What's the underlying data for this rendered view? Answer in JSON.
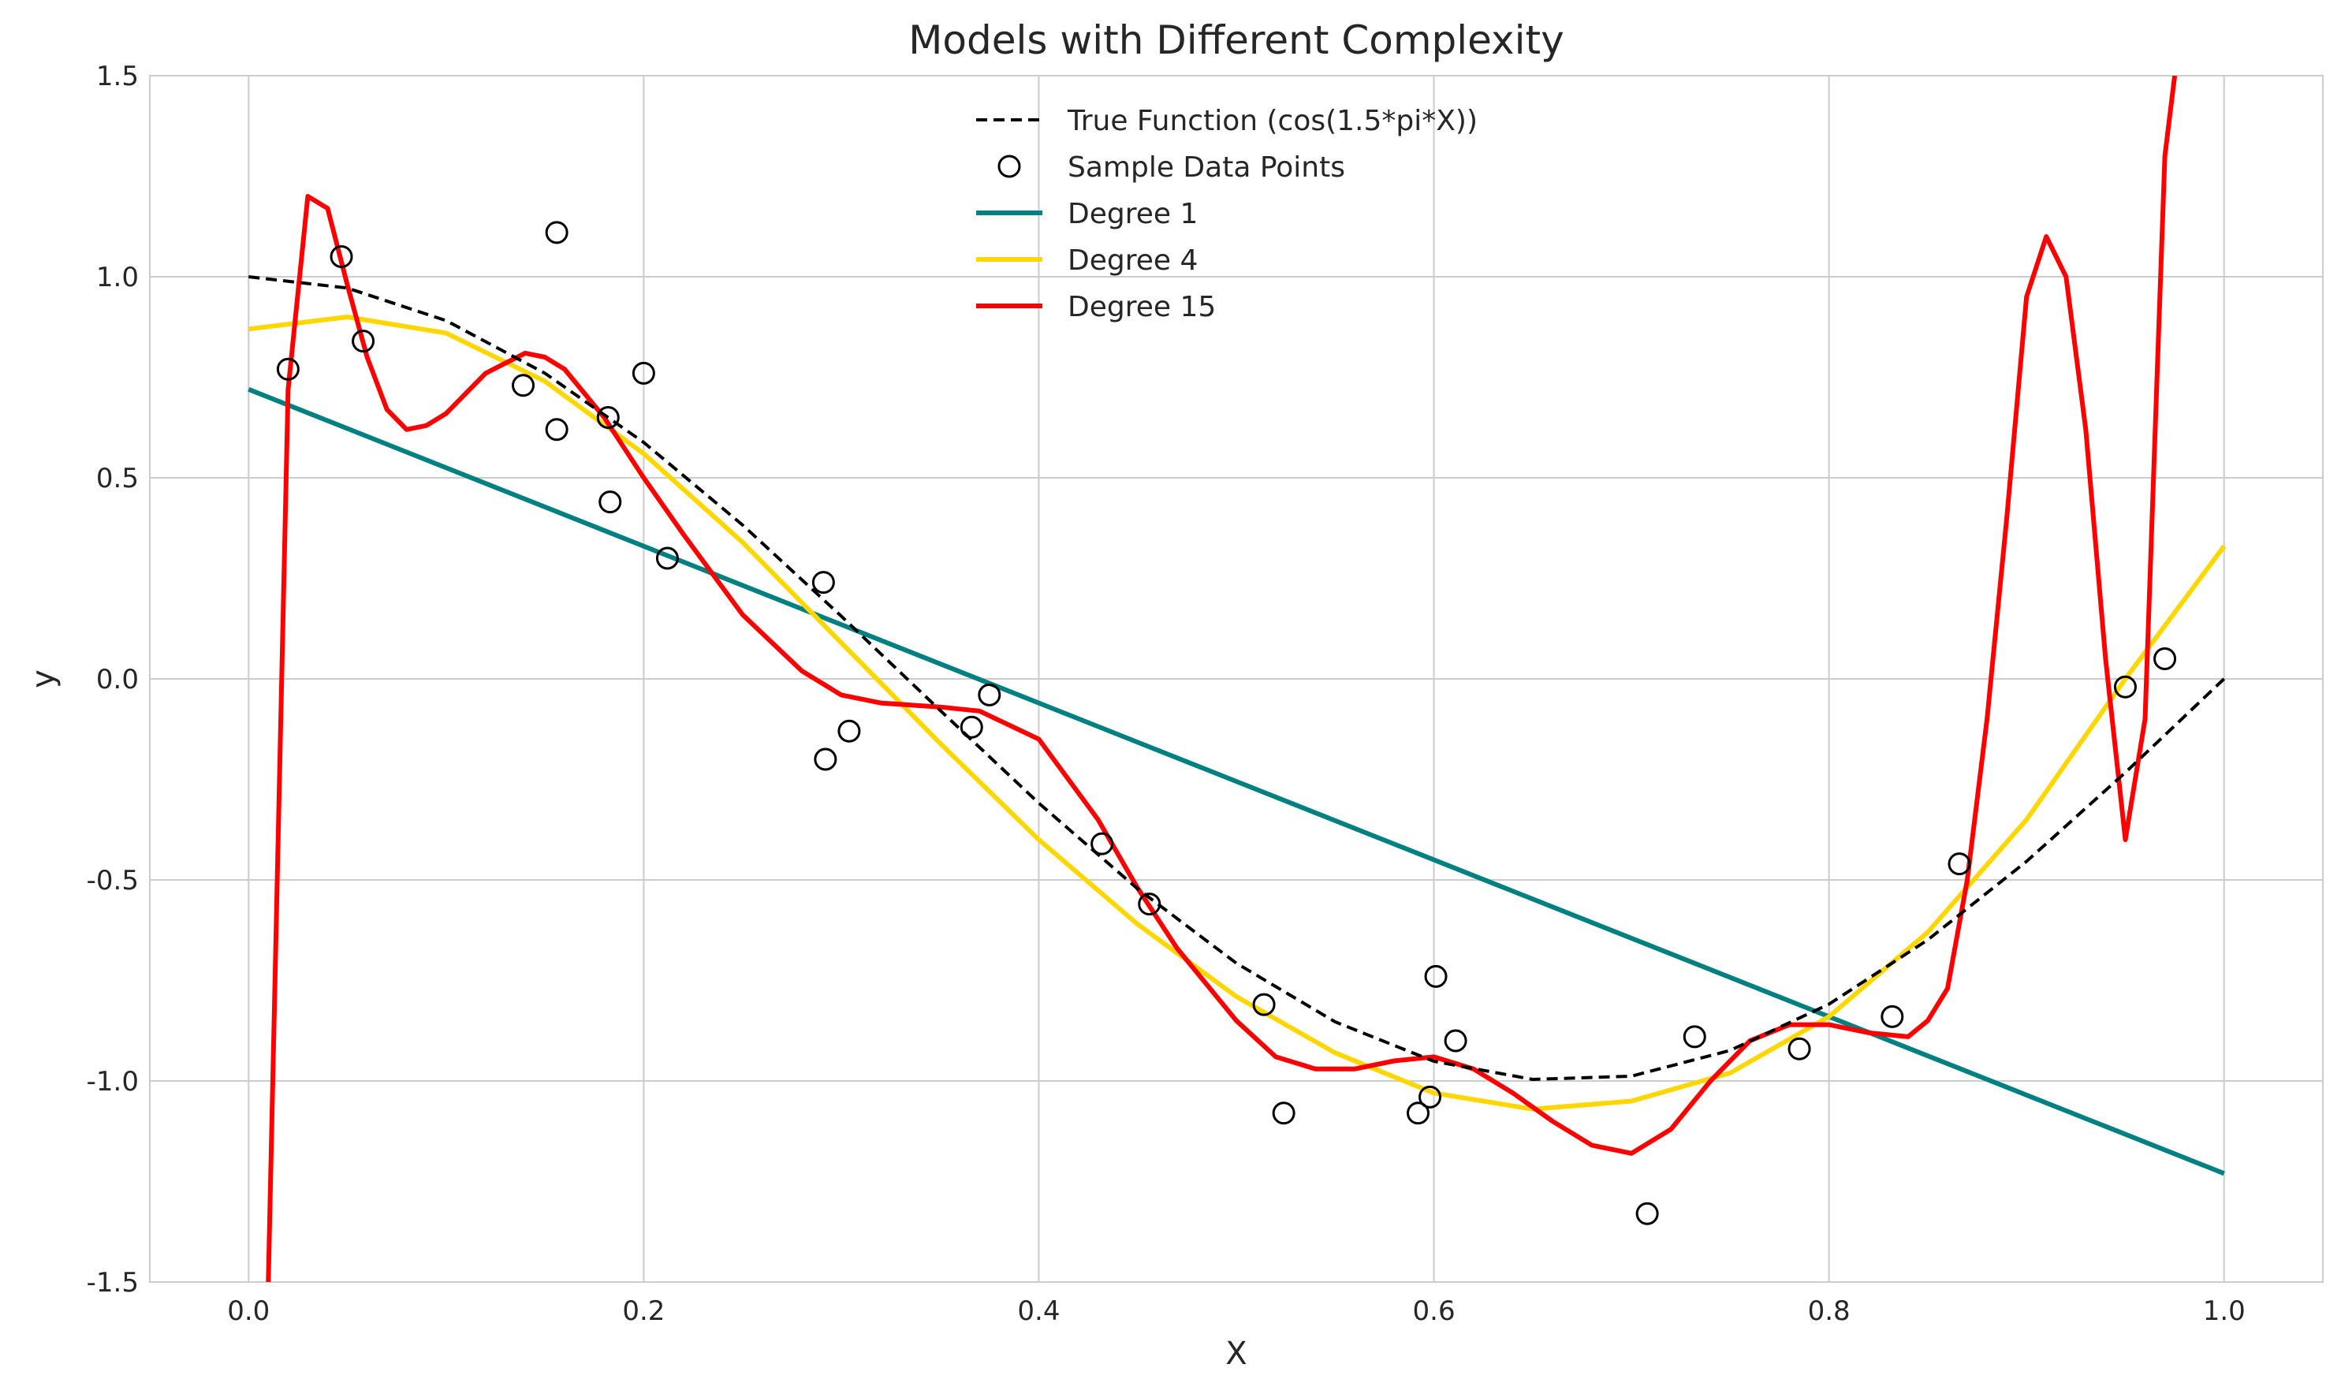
{
  "chart_data": {
    "type": "line",
    "title": "Models with Different Complexity",
    "xlabel": "X",
    "ylabel": "y",
    "xlim": [
      -0.05,
      1.05
    ],
    "ylim": [
      -1.5,
      1.5
    ],
    "x_ticks": [
      "0.0",
      "0.2",
      "0.4",
      "0.6",
      "0.8",
      "1.0"
    ],
    "x_tick_values": [
      0.0,
      0.2,
      0.4,
      0.6,
      0.8,
      1.0
    ],
    "y_ticks": [
      "-1.5",
      "-1.0",
      "-0.5",
      "0.0",
      "0.5",
      "1.0",
      "1.5"
    ],
    "y_tick_values": [
      -1.5,
      -1.0,
      -0.5,
      0.0,
      0.5,
      1.0,
      1.5
    ],
    "grid": true,
    "legend_position": "top-center",
    "colors": {
      "true_function": "#000000",
      "samples": "#000000",
      "degree1": "#008080",
      "degree4": "#FFD700",
      "degree15": "#FF0000",
      "grid": "#cccccc",
      "axes": "#cccccc"
    },
    "legend": [
      "True Function (cos(1.5*pi*X))",
      "Sample Data Points",
      "Degree 1",
      "Degree 4",
      "Degree 15"
    ],
    "true_function": {
      "x": [
        0.0,
        0.05,
        0.1,
        0.15,
        0.2,
        0.25,
        0.3,
        0.35,
        0.4,
        0.45,
        0.5,
        0.55,
        0.6,
        0.65,
        0.7,
        0.75,
        0.8,
        0.85,
        0.9,
        0.95,
        1.0
      ],
      "y": [
        1.0,
        0.972,
        0.891,
        0.76,
        0.588,
        0.383,
        0.156,
        -0.078,
        -0.309,
        -0.522,
        -0.707,
        -0.853,
        -0.951,
        -0.996,
        -0.988,
        -0.924,
        -0.809,
        -0.649,
        -0.454,
        -0.233,
        0.0
      ]
    },
    "samples": {
      "x": [
        0.02,
        0.047,
        0.058,
        0.139,
        0.156,
        0.156,
        0.182,
        0.183,
        0.2,
        0.212,
        0.291,
        0.292,
        0.304,
        0.366,
        0.375,
        0.432,
        0.456,
        0.514,
        0.524,
        0.592,
        0.598,
        0.601,
        0.611,
        0.708,
        0.732,
        0.785,
        0.832,
        0.866,
        0.95,
        0.97
      ],
      "y": [
        0.77,
        1.05,
        0.84,
        0.73,
        0.62,
        1.11,
        0.65,
        0.44,
        0.76,
        0.3,
        0.24,
        -0.2,
        -0.13,
        -0.12,
        -0.04,
        -0.41,
        -0.56,
        -0.81,
        -1.08,
        -1.08,
        -1.04,
        -0.74,
        -0.9,
        -1.33,
        -0.89,
        -0.92,
        -0.84,
        -0.46,
        -0.02,
        0.05
      ]
    },
    "series": [
      {
        "name": "Degree 1",
        "x": [
          0.0,
          1.0
        ],
        "y": [
          0.72,
          -1.23
        ]
      },
      {
        "name": "Degree 4",
        "x": [
          0.0,
          0.05,
          0.1,
          0.15,
          0.2,
          0.25,
          0.3,
          0.35,
          0.4,
          0.45,
          0.5,
          0.55,
          0.6,
          0.65,
          0.7,
          0.75,
          0.8,
          0.85,
          0.9,
          0.95,
          1.0
        ],
        "y": [
          0.87,
          0.9,
          0.86,
          0.74,
          0.56,
          0.34,
          0.09,
          -0.16,
          -0.4,
          -0.61,
          -0.79,
          -0.93,
          -1.03,
          -1.07,
          -1.05,
          -0.98,
          -0.84,
          -0.63,
          -0.35,
          0.0,
          0.33
        ]
      },
      {
        "name": "Degree 15",
        "x": [
          0.01,
          0.02,
          0.03,
          0.04,
          0.05,
          0.06,
          0.07,
          0.08,
          0.09,
          0.1,
          0.12,
          0.14,
          0.15,
          0.16,
          0.18,
          0.2,
          0.22,
          0.25,
          0.28,
          0.3,
          0.32,
          0.35,
          0.37,
          0.4,
          0.43,
          0.45,
          0.47,
          0.5,
          0.52,
          0.54,
          0.56,
          0.58,
          0.6,
          0.62,
          0.64,
          0.66,
          0.68,
          0.7,
          0.72,
          0.74,
          0.76,
          0.78,
          0.8,
          0.82,
          0.84,
          0.85,
          0.86,
          0.87,
          0.88,
          0.89,
          0.9,
          0.91,
          0.92,
          0.93,
          0.94,
          0.95,
          0.96,
          0.965,
          0.97,
          0.975
        ],
        "y": [
          -1.5,
          0.72,
          1.2,
          1.17,
          0.98,
          0.8,
          0.67,
          0.62,
          0.63,
          0.66,
          0.76,
          0.81,
          0.8,
          0.77,
          0.65,
          0.5,
          0.36,
          0.16,
          0.02,
          -0.04,
          -0.06,
          -0.07,
          -0.08,
          -0.15,
          -0.35,
          -0.52,
          -0.67,
          -0.85,
          -0.94,
          -0.97,
          -0.97,
          -0.95,
          -0.94,
          -0.97,
          -1.03,
          -1.1,
          -1.16,
          -1.18,
          -1.12,
          -1.0,
          -0.9,
          -0.86,
          -0.86,
          -0.88,
          -0.89,
          -0.85,
          -0.77,
          -0.5,
          -0.1,
          0.4,
          0.95,
          1.1,
          1.0,
          0.62,
          0.05,
          -0.4,
          -0.1,
          0.6,
          1.3,
          1.5
        ]
      }
    ]
  }
}
